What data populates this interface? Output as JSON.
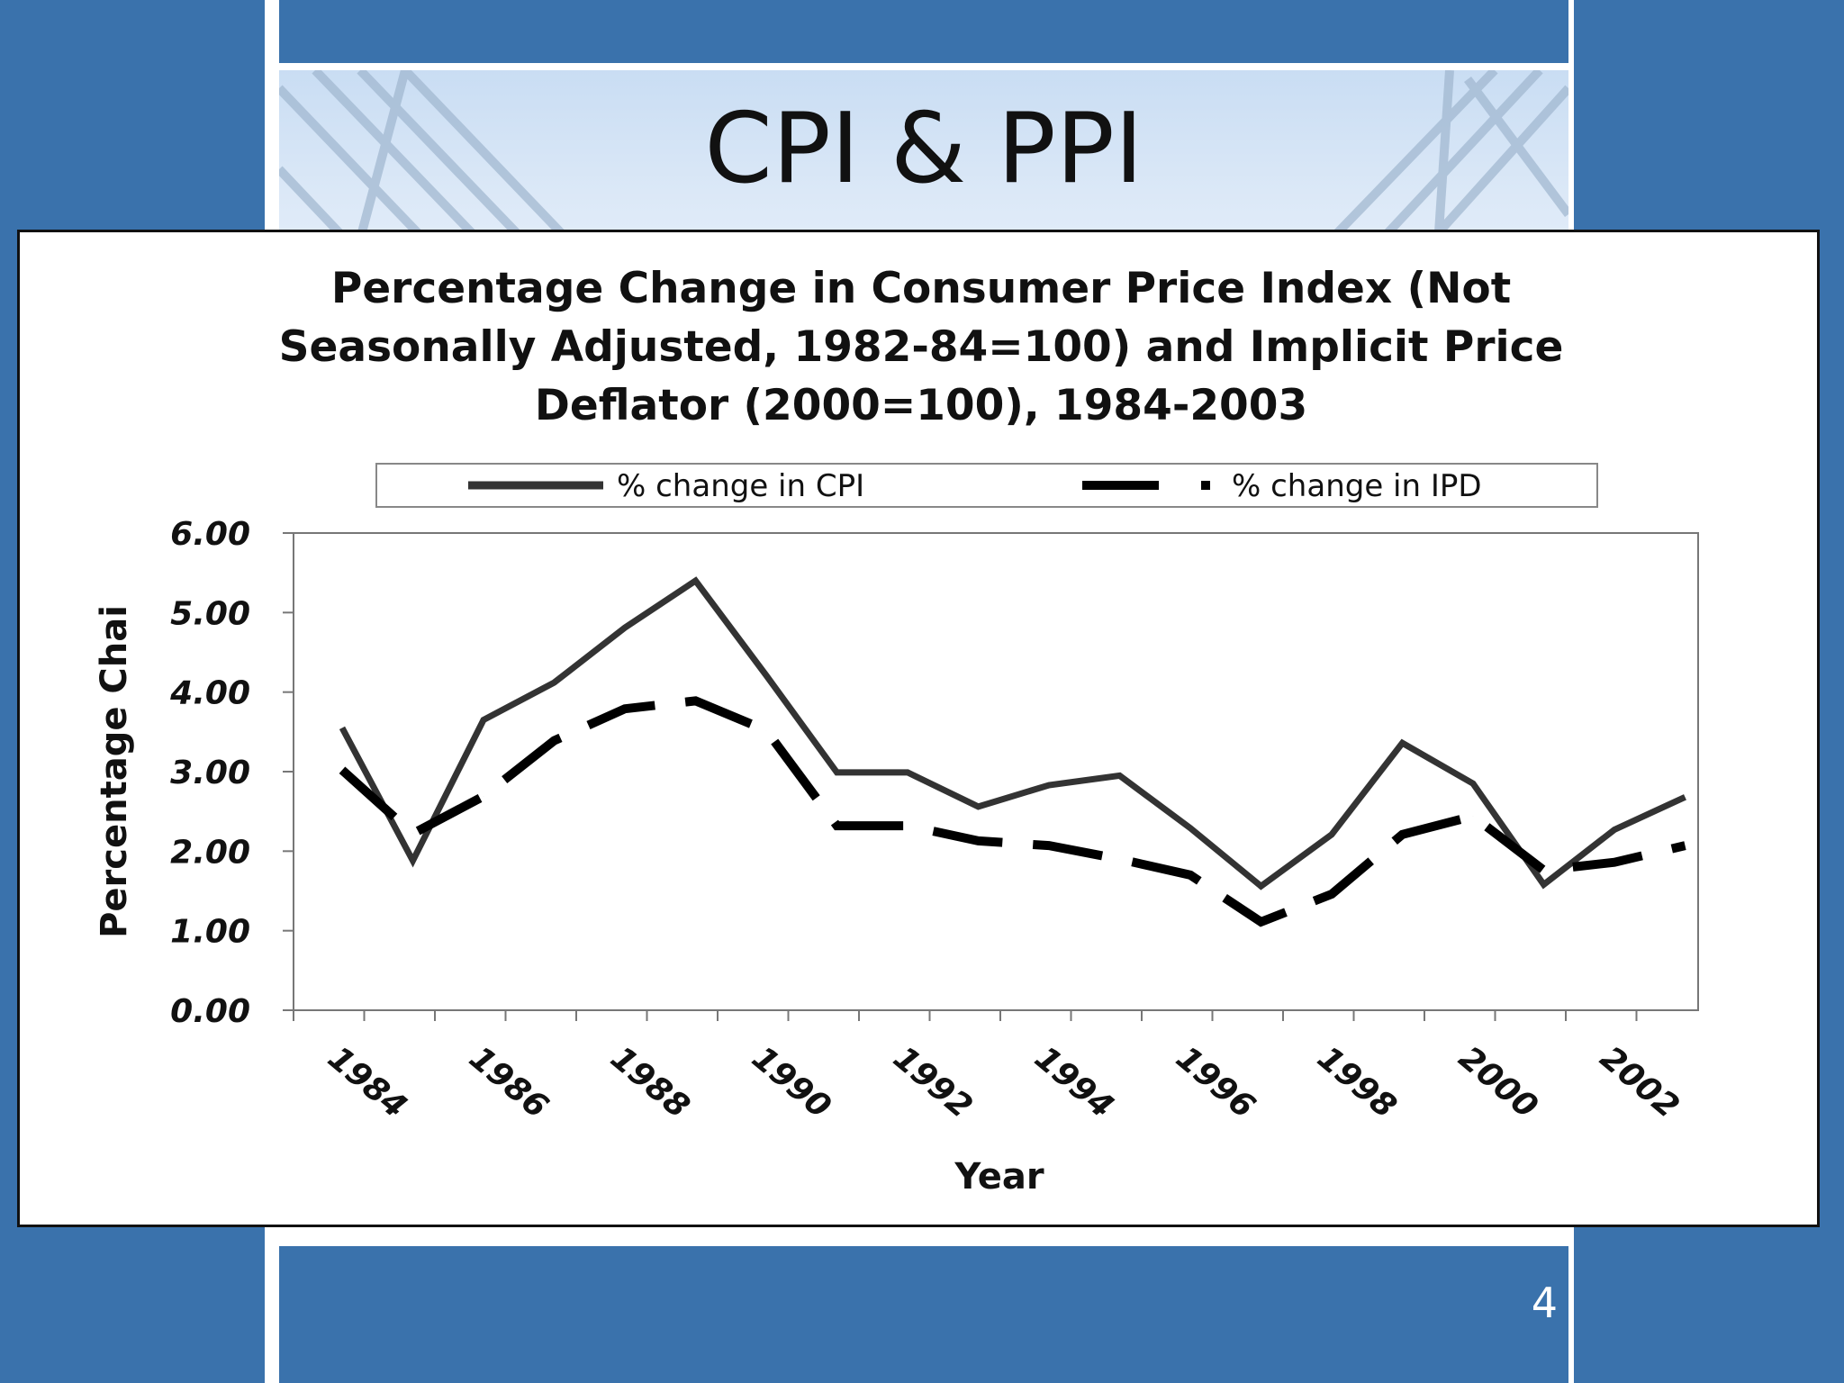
{
  "slide": {
    "title": "CPI & PPI",
    "page_number": "4"
  },
  "chart_data": {
    "type": "line",
    "title_lines": [
      "Percentage Change in Consumer Price Index (Not",
      "Seasonally Adjusted, 1982-84=100) and Implicit Price",
      "Deflator (2000=100), 1984-2003"
    ],
    "xlabel": "Year",
    "ylabel": "Percentage Chai",
    "ylim": [
      0,
      6
    ],
    "yticks": [
      "0.00",
      "1.00",
      "2.00",
      "3.00",
      "4.00",
      "5.00",
      "6.00"
    ],
    "x": [
      1984,
      1985,
      1986,
      1987,
      1988,
      1989,
      1990,
      1991,
      1992,
      1993,
      1994,
      1995,
      1996,
      1997,
      1998,
      1999,
      2000,
      2001,
      2002,
      2003
    ],
    "xtick_labels": [
      "1984",
      "1986",
      "1988",
      "1990",
      "1992",
      "1994",
      "1996",
      "1998",
      "2000",
      "2002"
    ],
    "legend_position": "top",
    "grid": false,
    "series": [
      {
        "name": "% change in CPI",
        "style": "solid",
        "color": "#333333",
        "values": [
          3.55,
          1.88,
          3.65,
          4.12,
          4.81,
          5.4,
          4.21,
          2.99,
          2.99,
          2.56,
          2.83,
          2.95,
          2.29,
          1.56,
          2.21,
          3.36,
          2.85,
          1.58,
          2.27,
          2.68
        ]
      },
      {
        "name": "% change in IPD",
        "style": "dashed",
        "color": "#000000",
        "values": [
          3.02,
          2.22,
          2.69,
          3.39,
          3.79,
          3.89,
          3.52,
          2.32,
          2.32,
          2.13,
          2.07,
          1.9,
          1.7,
          1.11,
          1.46,
          2.21,
          2.44,
          1.76,
          1.86,
          2.07
        ]
      }
    ]
  }
}
